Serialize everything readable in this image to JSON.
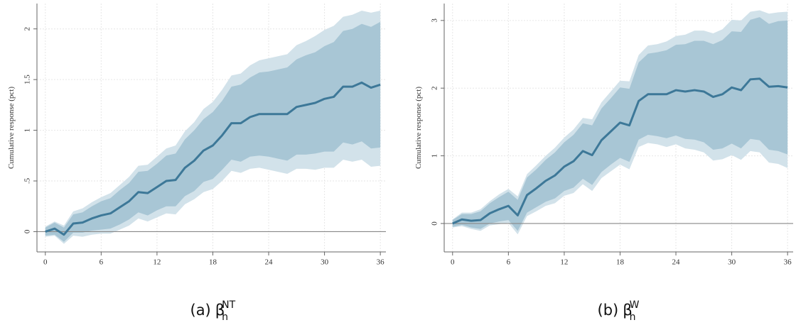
{
  "chart_data": [
    {
      "type": "line",
      "y_label": "Cumulative response (pct)",
      "caption": {
        "label": "(a)",
        "symbol": "β",
        "subscript": "h",
        "superscript": "NT"
      },
      "x": [
        0,
        1,
        2,
        3,
        4,
        5,
        6,
        7,
        8,
        9,
        10,
        11,
        12,
        13,
        14,
        15,
        16,
        17,
        18,
        19,
        20,
        21,
        22,
        23,
        24,
        25,
        26,
        27,
        28,
        29,
        30,
        31,
        32,
        33,
        34,
        35,
        36
      ],
      "xlim": [
        -0.9,
        36.6
      ],
      "xticks": [
        0,
        6,
        12,
        18,
        24,
        30,
        36
      ],
      "ylim": [
        -0.2,
        2.25
      ],
      "yticks": [
        0,
        {
          "value": 0.5,
          "label": ".5"
        },
        1,
        1.5,
        2
      ],
      "grid": true,
      "reference_line": 0,
      "series": [
        {
          "color": "#3d7898",
          "values": [
            0,
            0.03,
            -0.03,
            0.08,
            0.09,
            0.13,
            0.16,
            0.18,
            0.24,
            0.3,
            0.39,
            0.38,
            0.44,
            0.5,
            0.51,
            0.63,
            0.7,
            0.8,
            0.85,
            0.95,
            1.07,
            1.07,
            1.13,
            1.16,
            1.16,
            1.16,
            1.16,
            1.23,
            1.25,
            1.27,
            1.31,
            1.33,
            1.43,
            1.43,
            1.47,
            1.42,
            1.45
          ]
        }
      ],
      "bands": [
        {
          "color": "#d2e2ea",
          "upper": [
            0.05,
            0.1,
            0.06,
            0.2,
            0.23,
            0.29,
            0.34,
            0.38,
            0.46,
            0.54,
            0.65,
            0.66,
            0.74,
            0.82,
            0.85,
            0.99,
            1.08,
            1.21,
            1.28,
            1.4,
            1.54,
            1.56,
            1.64,
            1.69,
            1.71,
            1.73,
            1.75,
            1.84,
            1.88,
            1.93,
            1.99,
            2.03,
            2.12,
            2.14,
            2.18,
            2.16,
            2.18
          ],
          "lower": [
            -0.05,
            -0.04,
            -0.12,
            -0.04,
            -0.05,
            -0.03,
            -0.02,
            -0.02,
            0.02,
            0.06,
            0.13,
            0.1,
            0.14,
            0.18,
            0.17,
            0.27,
            0.32,
            0.39,
            0.42,
            0.5,
            0.6,
            0.58,
            0.62,
            0.63,
            0.61,
            0.59,
            0.57,
            0.62,
            0.62,
            0.61,
            0.63,
            0.63,
            0.71,
            0.69,
            0.71,
            0.64,
            0.65
          ]
        },
        {
          "color": "#a8c6d5",
          "upper": [
            0.04,
            0.09,
            0.04,
            0.17,
            0.19,
            0.25,
            0.3,
            0.33,
            0.41,
            0.48,
            0.59,
            0.6,
            0.67,
            0.75,
            0.77,
            0.91,
            1.0,
            1.11,
            1.18,
            1.29,
            1.43,
            1.45,
            1.52,
            1.57,
            1.58,
            1.6,
            1.62,
            1.7,
            1.74,
            1.77,
            1.83,
            1.87,
            1.98,
            2.0,
            2.05,
            2.02,
            2.07
          ],
          "lower": [
            -0.04,
            -0.03,
            -0.1,
            -0.01,
            -0.01,
            0.01,
            0.02,
            0.03,
            0.07,
            0.12,
            0.19,
            0.16,
            0.21,
            0.25,
            0.25,
            0.35,
            0.4,
            0.49,
            0.52,
            0.61,
            0.71,
            0.69,
            0.74,
            0.75,
            0.74,
            0.72,
            0.7,
            0.76,
            0.76,
            0.77,
            0.79,
            0.79,
            0.88,
            0.86,
            0.89,
            0.82,
            0.83
          ]
        }
      ]
    },
    {
      "type": "line",
      "y_label": "Cumulative response (pct)",
      "caption": {
        "label": "(b)",
        "symbol": "β",
        "subscript": "h",
        "superscript": "W"
      },
      "x": [
        0,
        1,
        2,
        3,
        4,
        5,
        6,
        7,
        8,
        9,
        10,
        11,
        12,
        13,
        14,
        15,
        16,
        17,
        18,
        19,
        20,
        21,
        22,
        23,
        24,
        25,
        26,
        27,
        28,
        29,
        30,
        31,
        32,
        33,
        34,
        35,
        36
      ],
      "xlim": [
        -0.9,
        36.6
      ],
      "xticks": [
        0,
        6,
        12,
        18,
        24,
        30,
        36
      ],
      "ylim": [
        -0.42,
        3.25
      ],
      "yticks": [
        0,
        1,
        2,
        3
      ],
      "grid": true,
      "reference_line": 0,
      "series": [
        {
          "color": "#3d7898",
          "values": [
            0,
            0.06,
            0.04,
            0.05,
            0.15,
            0.21,
            0.26,
            0.12,
            0.42,
            0.52,
            0.63,
            0.71,
            0.84,
            0.92,
            1.07,
            1.01,
            1.23,
            1.36,
            1.49,
            1.45,
            1.81,
            1.91,
            1.91,
            1.91,
            1.97,
            1.95,
            1.97,
            1.95,
            1.87,
            1.91,
            2.01,
            1.97,
            2.13,
            2.14,
            2.02,
            2.03,
            2.01
          ]
        }
      ],
      "bands": [
        {
          "color": "#d2e2ea",
          "upper": [
            0.06,
            0.16,
            0.16,
            0.21,
            0.33,
            0.43,
            0.51,
            0.4,
            0.73,
            0.86,
            1.0,
            1.12,
            1.27,
            1.39,
            1.56,
            1.54,
            1.79,
            1.95,
            2.11,
            2.1,
            2.49,
            2.63,
            2.65,
            2.69,
            2.77,
            2.79,
            2.85,
            2.85,
            2.81,
            2.87,
            3.01,
            3.0,
            3.13,
            3.15,
            3.1,
            3.12,
            3.13
          ],
          "lower": [
            -0.06,
            -0.04,
            -0.08,
            -0.11,
            -0.03,
            -0.01,
            0.01,
            -0.16,
            0.11,
            0.18,
            0.26,
            0.3,
            0.41,
            0.45,
            0.58,
            0.48,
            0.67,
            0.77,
            0.87,
            0.8,
            1.13,
            1.19,
            1.17,
            1.13,
            1.17,
            1.11,
            1.09,
            1.05,
            0.93,
            0.95,
            1.01,
            0.94,
            1.07,
            1.05,
            0.9,
            0.88,
            0.82
          ]
        },
        {
          "color": "#a8c6d5",
          "upper": [
            0.05,
            0.14,
            0.14,
            0.18,
            0.3,
            0.39,
            0.47,
            0.35,
            0.68,
            0.8,
            0.94,
            1.05,
            1.2,
            1.31,
            1.48,
            1.45,
            1.7,
            1.85,
            2.01,
            1.99,
            2.38,
            2.51,
            2.53,
            2.56,
            2.64,
            2.65,
            2.7,
            2.7,
            2.65,
            2.71,
            2.84,
            2.83,
            3.01,
            3.05,
            2.95,
            2.99,
            3.0
          ],
          "lower": [
            -0.05,
            -0.02,
            -0.06,
            -0.08,
            0.0,
            0.03,
            0.05,
            -0.11,
            0.16,
            0.24,
            0.32,
            0.37,
            0.48,
            0.53,
            0.66,
            0.57,
            0.76,
            0.87,
            0.97,
            0.91,
            1.24,
            1.31,
            1.29,
            1.26,
            1.3,
            1.25,
            1.24,
            1.2,
            1.09,
            1.11,
            1.18,
            1.11,
            1.25,
            1.23,
            1.09,
            1.07,
            1.02
          ]
        }
      ]
    }
  ]
}
